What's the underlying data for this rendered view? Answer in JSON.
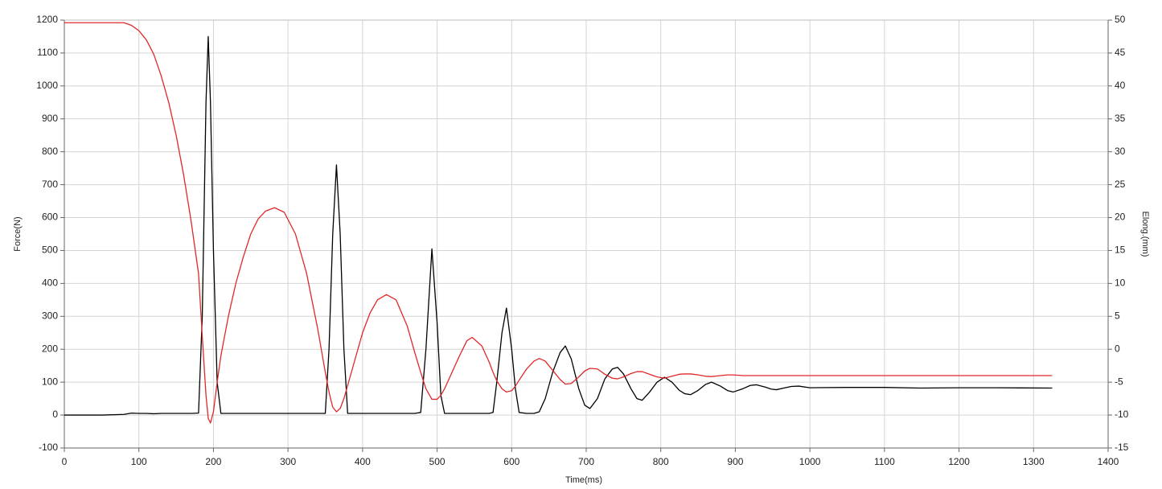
{
  "chart_data": {
    "type": "line",
    "x_label": "Time(ms)",
    "y_label": "Force(N)",
    "y2_label": "Elong.(mm)",
    "xlim": [
      0,
      1400
    ],
    "xticks": [
      0,
      100,
      200,
      300,
      400,
      500,
      600,
      700,
      800,
      900,
      1000,
      1100,
      1200,
      1300,
      1400
    ],
    "ylim": [
      -100,
      1200
    ],
    "yticks": [
      -100,
      0,
      100,
      200,
      300,
      400,
      500,
      600,
      700,
      800,
      900,
      1000,
      1100,
      1200
    ],
    "y2lim": [
      -15,
      50
    ],
    "y2ticks": [
      -15,
      -10,
      -5,
      0,
      5,
      10,
      15,
      20,
      25,
      30,
      35,
      40,
      45,
      50
    ],
    "grid": true,
    "x": [
      0,
      50,
      80,
      90,
      100,
      110,
      120,
      130,
      140,
      150,
      160,
      170,
      180,
      185,
      190,
      193,
      196,
      200,
      205,
      210,
      220,
      230,
      240,
      250,
      260,
      270,
      282,
      295,
      310,
      325,
      340,
      350,
      355,
      360,
      365,
      370,
      375,
      380,
      390,
      400,
      410,
      420,
      432,
      445,
      460,
      470,
      478,
      485,
      493,
      500,
      505,
      510,
      520,
      530,
      540,
      547,
      560,
      570,
      575,
      580,
      587,
      593,
      600,
      605,
      610,
      620,
      630,
      637,
      645,
      655,
      665,
      672,
      680,
      690,
      698,
      705,
      715,
      725,
      735,
      742,
      750,
      760,
      768,
      775,
      785,
      795,
      805,
      815,
      825,
      832,
      840,
      850,
      860,
      868,
      880,
      890,
      897,
      910,
      920,
      928,
      940,
      948,
      955,
      965,
      975,
      985,
      1000,
      1050,
      1100,
      1150,
      1200,
      1250,
      1325
    ],
    "series": [
      {
        "color": "#000000",
        "axis": "y",
        "values": [
          0,
          0,
          2,
          6,
          5,
          5,
          4,
          5,
          5,
          5,
          5,
          5,
          6,
          300,
          950,
          1150,
          950,
          500,
          100,
          5,
          5,
          5,
          5,
          5,
          5,
          5,
          5,
          5,
          5,
          5,
          5,
          5,
          200,
          550,
          760,
          550,
          200,
          5,
          5,
          5,
          5,
          5,
          5,
          5,
          5,
          5,
          8,
          200,
          505,
          280,
          60,
          5,
          5,
          5,
          5,
          5,
          5,
          5,
          8,
          100,
          250,
          325,
          200,
          80,
          8,
          5,
          5,
          10,
          50,
          130,
          190,
          210,
          170,
          80,
          30,
          20,
          50,
          110,
          140,
          145,
          125,
          80,
          50,
          45,
          70,
          100,
          115,
          100,
          75,
          65,
          62,
          75,
          93,
          100,
          88,
          74,
          70,
          80,
          90,
          92,
          85,
          79,
          77,
          82,
          87,
          88,
          83,
          84,
          84,
          82,
          83,
          83,
          82
        ]
      },
      {
        "color": "#e0282a",
        "axis": "y2",
        "values": [
          49.6,
          49.6,
          49.6,
          49.2,
          48.4,
          47,
          44.8,
          41.5,
          37.5,
          32.5,
          26.5,
          19.5,
          11.5,
          2,
          -7,
          -10.5,
          -11.2,
          -9.5,
          -5,
          -1,
          5,
          10,
          14,
          17.5,
          19.8,
          21,
          21.5,
          20.8,
          17.5,
          11.5,
          3,
          -3.5,
          -6.5,
          -8.8,
          -9.5,
          -9,
          -7.5,
          -5.5,
          -1.5,
          2.5,
          5.5,
          7.5,
          8.3,
          7.5,
          3.5,
          -0.5,
          -3.5,
          -6,
          -7.6,
          -7.6,
          -7,
          -6,
          -3.5,
          -1,
          1.3,
          1.8,
          0.5,
          -2,
          -3.5,
          -4.8,
          -6,
          -6.5,
          -6.3,
          -5.6,
          -4.7,
          -3,
          -1.8,
          -1.4,
          -1.8,
          -3.2,
          -4.6,
          -5.3,
          -5.2,
          -4.2,
          -3.3,
          -2.9,
          -3,
          -3.8,
          -4.4,
          -4.5,
          -4.2,
          -3.7,
          -3.4,
          -3.4,
          -3.8,
          -4.2,
          -4.4,
          -4.1,
          -3.8,
          -3.75,
          -3.75,
          -3.9,
          -4.1,
          -4.15,
          -4,
          -3.9,
          -3.9,
          -4,
          -4,
          -4,
          -4,
          -4,
          -4,
          -4,
          -4,
          -4,
          -4,
          -4,
          -4,
          -4,
          -4,
          -4,
          -4
        ]
      }
    ]
  }
}
